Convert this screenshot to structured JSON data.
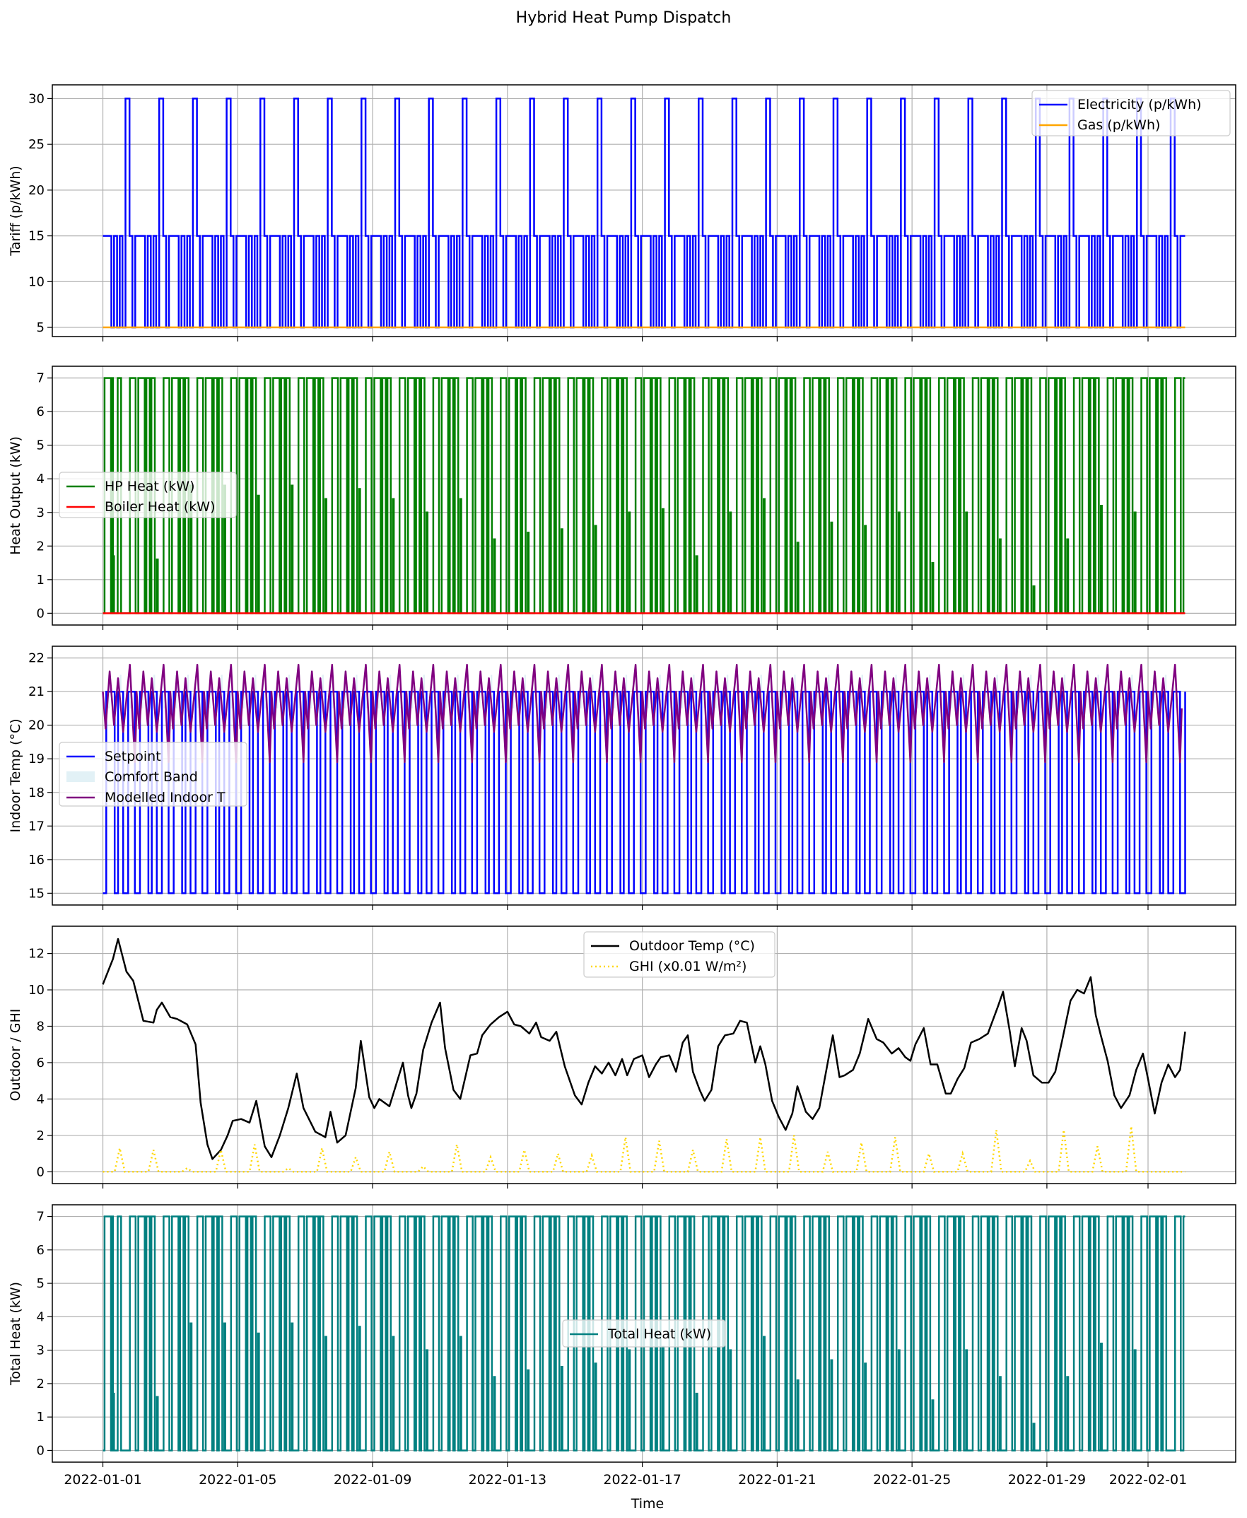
{
  "figure": {
    "title": "Hybrid Heat Pump Dispatch",
    "xlabel": "Time",
    "x_tick_labels": [
      "2022-01-01",
      "2022-01-05",
      "2022-01-09",
      "2022-01-13",
      "2022-01-17",
      "2022-01-21",
      "2022-01-25",
      "2022-01-29",
      "2022-02-01"
    ]
  },
  "chart_data": [
    {
      "type": "line",
      "ylabel": "Tariff (p/kWh)",
      "x_range": [
        "2022-01-01",
        "2022-02-01"
      ],
      "ylim": [
        4.0,
        31.5
      ],
      "yticks": [
        5,
        10,
        15,
        20,
        25,
        30
      ],
      "grid": true,
      "legend": "top-right",
      "series": [
        {
          "name": "Electricity (p/kWh)",
          "color": "#0000ff",
          "style": "step",
          "pattern": {
            "repeat": "daily",
            "levels": [
              [
                0,
                15
              ],
              [
                0.25,
                5
              ],
              [
                0.33,
                15
              ],
              [
                0.42,
                5
              ],
              [
                0.5,
                15
              ],
              [
                0.58,
                5
              ],
              [
                0.67,
                30
              ],
              [
                0.79,
                15
              ],
              [
                0.875,
                5
              ],
              [
                0.96,
                15
              ]
            ]
          }
        },
        {
          "name": "Gas (p/kWh)",
          "color": "#ffa500",
          "style": "constant",
          "value": 5
        }
      ]
    },
    {
      "type": "line",
      "ylabel": "Heat Output (kW)",
      "x_range": [
        "2022-01-01",
        "2022-02-01"
      ],
      "ylim": [
        -0.35,
        7.35
      ],
      "yticks": [
        0,
        1,
        2,
        3,
        4,
        5,
        6,
        7
      ],
      "grid": true,
      "legend": "center-left",
      "series": [
        {
          "name": "HP Heat (kW)",
          "color": "#008000",
          "style": "step",
          "pattern": {
            "repeat": "daily",
            "on_windows": [
              [
                0.05,
                0.24
              ],
              [
                0.29,
                0.39
              ],
              [
                0.44,
                0.54
              ],
              [
                0.8,
                0.97
              ]
            ],
            "on_value": 7.0,
            "spikes": [
              [
                0,
                0.3,
                1.7
              ],
              [
                1,
                0.6,
                1.6
              ],
              [
                2,
                0.6,
                3.8
              ],
              [
                3,
                0.6,
                3.8
              ],
              [
                4,
                0.6,
                3.5
              ],
              [
                5,
                0.6,
                3.8
              ],
              [
                6,
                0.6,
                3.4
              ],
              [
                7,
                0.6,
                3.7
              ],
              [
                8,
                0.6,
                3.4
              ],
              [
                9,
                0.6,
                3.0
              ],
              [
                10,
                0.6,
                3.4
              ],
              [
                11,
                0.6,
                2.2
              ],
              [
                12,
                0.6,
                2.4
              ],
              [
                13,
                0.6,
                2.5
              ],
              [
                14,
                0.6,
                2.6
              ],
              [
                15,
                0.6,
                3.0
              ],
              [
                16,
                0.6,
                3.1
              ],
              [
                17,
                0.6,
                1.7
              ],
              [
                18,
                0.6,
                3.0
              ],
              [
                19,
                0.6,
                3.4
              ],
              [
                20,
                0.6,
                2.1
              ],
              [
                21,
                0.6,
                2.7
              ],
              [
                22,
                0.6,
                2.6
              ],
              [
                23,
                0.6,
                3.0
              ],
              [
                24,
                0.6,
                1.5
              ],
              [
                25,
                0.6,
                3.0
              ],
              [
                26,
                0.6,
                2.2
              ],
              [
                27,
                0.6,
                0.8
              ],
              [
                28,
                0.6,
                2.2
              ],
              [
                29,
                0.6,
                3.2
              ],
              [
                30,
                0.6,
                3.0
              ]
            ]
          }
        },
        {
          "name": "Boiler Heat (kW)",
          "color": "#ff0000",
          "style": "constant",
          "value": 0
        }
      ]
    },
    {
      "type": "line",
      "ylabel": "Indoor Temp (°C)",
      "x_range": [
        "2022-01-01",
        "2022-02-01"
      ],
      "ylim": [
        14.65,
        22.35
      ],
      "yticks": [
        15,
        16,
        17,
        18,
        19,
        20,
        21,
        22
      ],
      "grid": true,
      "legend": "center-left",
      "series": [
        {
          "name": "Setpoint",
          "color": "#0000ff",
          "style": "step",
          "pattern": {
            "repeat": "daily",
            "on_windows": [
              [
                0.1,
                0.35
              ],
              [
                0.45,
                0.6
              ],
              [
                0.75,
                0.95
              ]
            ],
            "on_value": 21,
            "off_value": 15
          }
        },
        {
          "name": "Comfort Band",
          "color": "#add8e6",
          "style": "band",
          "lower": 20.5,
          "upper": 21.5,
          "repeat": "daily"
        },
        {
          "name": "Modelled Indoor T",
          "color": "#800080",
          "style": "line",
          "pattern": {
            "repeat": "daily",
            "points": [
              [
                0,
                21.0
              ],
              [
                0.08,
                19.9
              ],
              [
                0.2,
                21.6
              ],
              [
                0.33,
                20.0
              ],
              [
                0.45,
                21.4
              ],
              [
                0.6,
                19.8
              ],
              [
                0.8,
                21.8
              ],
              [
                0.95,
                18.9
              ],
              [
                1.0,
                20.5
              ]
            ]
          }
        }
      ]
    },
    {
      "type": "line",
      "ylabel": "Outdoor / GHI",
      "x_range": [
        "2022-01-01",
        "2022-02-01"
      ],
      "ylim": [
        -0.65,
        13.5
      ],
      "yticks": [
        0,
        2,
        4,
        6,
        8,
        10,
        12
      ],
      "grid": true,
      "legend": "top-center",
      "series": [
        {
          "name": "Outdoor Temp (°C)",
          "color": "#000000",
          "style": "line",
          "points": [
            [
              0,
              10.3
            ],
            [
              0.3,
              11.7
            ],
            [
              0.45,
              12.8
            ],
            [
              0.7,
              11.0
            ],
            [
              0.9,
              10.5
            ],
            [
              1.2,
              8.3
            ],
            [
              1.5,
              8.2
            ],
            [
              1.6,
              8.9
            ],
            [
              1.75,
              9.3
            ],
            [
              2.0,
              8.5
            ],
            [
              2.2,
              8.4
            ],
            [
              2.5,
              8.1
            ],
            [
              2.75,
              7.0
            ],
            [
              2.9,
              3.8
            ],
            [
              3.1,
              1.5
            ],
            [
              3.25,
              0.7
            ],
            [
              3.5,
              1.2
            ],
            [
              3.7,
              2.0
            ],
            [
              3.85,
              2.8
            ],
            [
              4.1,
              2.9
            ],
            [
              4.35,
              2.7
            ],
            [
              4.55,
              3.9
            ],
            [
              4.8,
              1.4
            ],
            [
              5.0,
              0.8
            ],
            [
              5.25,
              2.0
            ],
            [
              5.5,
              3.5
            ],
            [
              5.75,
              5.4
            ],
            [
              5.95,
              3.5
            ],
            [
              6.3,
              2.2
            ],
            [
              6.6,
              1.9
            ],
            [
              6.75,
              3.3
            ],
            [
              6.95,
              1.6
            ],
            [
              7.2,
              2.0
            ],
            [
              7.5,
              4.6
            ],
            [
              7.65,
              7.2
            ],
            [
              7.9,
              4.1
            ],
            [
              8.05,
              3.5
            ],
            [
              8.2,
              4.0
            ],
            [
              8.5,
              3.6
            ],
            [
              8.75,
              5.1
            ],
            [
              8.9,
              6.0
            ],
            [
              9.05,
              4.2
            ],
            [
              9.15,
              3.5
            ],
            [
              9.3,
              4.3
            ],
            [
              9.5,
              6.7
            ],
            [
              9.75,
              8.2
            ],
            [
              10.0,
              9.3
            ],
            [
              10.15,
              6.8
            ],
            [
              10.4,
              4.5
            ],
            [
              10.6,
              4.0
            ],
            [
              10.9,
              6.4
            ],
            [
              11.1,
              6.5
            ],
            [
              11.25,
              7.5
            ],
            [
              11.5,
              8.1
            ],
            [
              11.75,
              8.5
            ],
            [
              12.0,
              8.8
            ],
            [
              12.2,
              8.1
            ],
            [
              12.4,
              8.0
            ],
            [
              12.65,
              7.6
            ],
            [
              12.85,
              8.2
            ],
            [
              13.0,
              7.4
            ],
            [
              13.25,
              7.2
            ],
            [
              13.45,
              7.7
            ],
            [
              13.7,
              5.8
            ],
            [
              14.0,
              4.2
            ],
            [
              14.2,
              3.7
            ],
            [
              14.4,
              4.9
            ],
            [
              14.6,
              5.8
            ],
            [
              14.8,
              5.4
            ],
            [
              15.0,
              6.0
            ],
            [
              15.2,
              5.3
            ],
            [
              15.4,
              6.2
            ],
            [
              15.55,
              5.3
            ],
            [
              15.75,
              6.2
            ],
            [
              16.0,
              6.4
            ],
            [
              16.2,
              5.2
            ],
            [
              16.4,
              5.9
            ],
            [
              16.55,
              6.3
            ],
            [
              16.8,
              6.4
            ],
            [
              17.0,
              5.5
            ],
            [
              17.2,
              7.1
            ],
            [
              17.35,
              7.5
            ],
            [
              17.5,
              5.5
            ],
            [
              17.7,
              4.5
            ],
            [
              17.85,
              3.9
            ],
            [
              18.05,
              4.5
            ],
            [
              18.25,
              6.9
            ],
            [
              18.45,
              7.5
            ],
            [
              18.7,
              7.6
            ],
            [
              18.9,
              8.3
            ],
            [
              19.1,
              8.2
            ],
            [
              19.35,
              6.0
            ],
            [
              19.5,
              6.9
            ],
            [
              19.65,
              5.9
            ],
            [
              19.85,
              3.9
            ],
            [
              20.05,
              3.0
            ],
            [
              20.25,
              2.3
            ],
            [
              20.45,
              3.2
            ],
            [
              20.6,
              4.7
            ],
            [
              20.85,
              3.3
            ],
            [
              21.05,
              2.9
            ],
            [
              21.25,
              3.5
            ],
            [
              21.45,
              5.5
            ],
            [
              21.65,
              7.5
            ],
            [
              21.85,
              5.2
            ],
            [
              22.0,
              5.3
            ],
            [
              22.25,
              5.6
            ],
            [
              22.45,
              6.5
            ],
            [
              22.7,
              8.4
            ],
            [
              22.95,
              7.3
            ],
            [
              23.15,
              7.1
            ],
            [
              23.4,
              6.5
            ],
            [
              23.6,
              6.8
            ],
            [
              23.8,
              6.3
            ],
            [
              23.95,
              6.1
            ],
            [
              24.1,
              7.0
            ],
            [
              24.35,
              7.9
            ],
            [
              24.55,
              5.9
            ],
            [
              24.75,
              5.9
            ],
            [
              25.0,
              4.3
            ],
            [
              25.15,
              4.3
            ],
            [
              25.35,
              5.1
            ],
            [
              25.55,
              5.7
            ],
            [
              25.75,
              7.1
            ],
            [
              26.0,
              7.3
            ],
            [
              26.25,
              7.6
            ],
            [
              26.55,
              9.1
            ],
            [
              26.7,
              9.9
            ],
            [
              26.9,
              7.7
            ],
            [
              27.05,
              5.8
            ],
            [
              27.25,
              7.9
            ],
            [
              27.4,
              7.2
            ],
            [
              27.6,
              5.3
            ],
            [
              27.85,
              4.9
            ],
            [
              28.05,
              4.9
            ],
            [
              28.25,
              5.5
            ],
            [
              28.45,
              7.2
            ],
            [
              28.7,
              9.4
            ],
            [
              28.9,
              10.0
            ],
            [
              29.1,
              9.8
            ],
            [
              29.3,
              10.7
            ],
            [
              29.45,
              8.6
            ],
            [
              29.6,
              7.5
            ],
            [
              29.8,
              6.1
            ],
            [
              30.0,
              4.2
            ],
            [
              30.2,
              3.5
            ],
            [
              30.45,
              4.2
            ],
            [
              30.65,
              5.6
            ],
            [
              30.85,
              6.5
            ],
            [
              31.0,
              5.1
            ],
            [
              31.2,
              3.2
            ],
            [
              31.4,
              4.9
            ],
            [
              31.6,
              5.9
            ],
            [
              31.8,
              5.2
            ],
            [
              31.95,
              5.6
            ],
            [
              32.1,
              7.7
            ]
          ]
        },
        {
          "name": "GHI (x0.01 W/m²)",
          "color": "#ffd700",
          "style": "dotted",
          "daily_peaks": [
            1.3,
            1.2,
            0.2,
            1.2,
            1.5,
            0.2,
            1.3,
            0.8,
            1.1,
            0.3,
            1.5,
            0.8,
            1.2,
            1.0,
            0.9,
            1.9,
            1.7,
            1.2,
            1.8,
            1.9,
            2.0,
            1.1,
            1.6,
            1.9,
            1.0,
            1.0,
            2.3,
            0.6,
            2.3,
            1.4,
            2.5
          ]
        }
      ]
    },
    {
      "type": "line",
      "ylabel": "Total Heat (kW)",
      "x_range": [
        "2022-01-01",
        "2022-02-01"
      ],
      "ylim": [
        -0.35,
        7.35
      ],
      "yticks": [
        0,
        1,
        2,
        3,
        4,
        5,
        6,
        7
      ],
      "grid": true,
      "legend": "center",
      "series": [
        {
          "name": "Total Heat (kW)",
          "color": "#008080",
          "style": "step",
          "same_as": "HP Heat (kW)"
        }
      ]
    }
  ]
}
